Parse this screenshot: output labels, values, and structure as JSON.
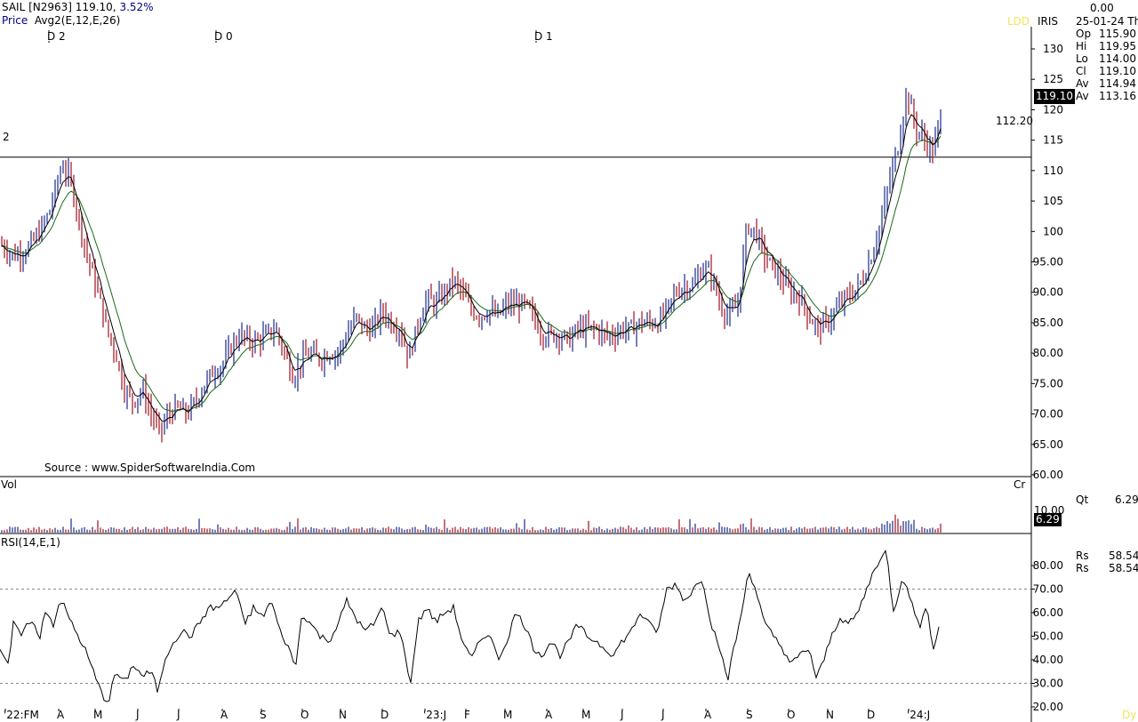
{
  "header": {
    "symbol": "SAIL [N2963]",
    "last": "119.10,",
    "change_pct": "3.52%",
    "indicator_label": "Price",
    "indicator_name": "Avg2(E,12,E,26)",
    "top_right_value": "0.00",
    "date": "25-01-24 Th",
    "ldd": "LDD",
    "iris": "IRIS"
  },
  "ohlc_panel": [
    {
      "key": "Op",
      "value": "115.90",
      "color": "#000080"
    },
    {
      "key": "Hi",
      "value": "119.95",
      "color": "#b00000"
    },
    {
      "key": "Lo",
      "value": "114.00",
      "color": "#f0c0c0"
    },
    {
      "key": "Cl",
      "value": "119.10",
      "color": "#a000a0"
    },
    {
      "key": "Av",
      "value": "114.94",
      "color": "#000000"
    },
    {
      "key": "Av",
      "value": "113.16",
      "color": "#008000"
    }
  ],
  "markers": [
    {
      "label": "D 2"
    },
    {
      "label": "D 0"
    },
    {
      "label": "D 1"
    }
  ],
  "left_marker": "2",
  "source": "Source : www.SpiderSoftwareIndia.Com",
  "price_axis": {
    "ticks": [
      "130",
      "125",
      "120",
      "115",
      "110",
      "105",
      "100",
      "95.00",
      "90.00",
      "85.00",
      "80.00",
      "75.00",
      "70.00",
      "65.00",
      "60.00"
    ],
    "current_price_tag": "119.10",
    "hline_label": "112.20",
    "hline_value": 112.2
  },
  "volume_panel": {
    "label": "Vol",
    "unit": "Cr",
    "tick": "10.00",
    "current_tag": "6.29",
    "qt_label": "Qt",
    "qt_value": "6.29"
  },
  "rsi_panel": {
    "label": "RSI(14,E,1)",
    "ticks": [
      "80.00",
      "70.00",
      "60.00",
      "50.00",
      "40.00",
      "30.00",
      "20.00"
    ],
    "rs": [
      {
        "key": "Rs",
        "value": "58.54"
      },
      {
        "key": "Rs",
        "value": "58.54"
      }
    ]
  },
  "x_axis_labels": [
    "'22:FM",
    "A",
    "M",
    "J",
    "J",
    "A",
    "S",
    "O",
    "N",
    "D",
    "'23:J",
    "F",
    "M",
    "A",
    "M",
    "J",
    "J",
    "A",
    "S",
    "O",
    "N",
    "D",
    "'24:J"
  ],
  "dy_label": "Dy",
  "colors": {
    "up": "#1a2a8a",
    "down": "#a01020",
    "ema_fast": "#000000",
    "ema_slow": "#1a6a1a",
    "grid": "#888888"
  },
  "chart_data": [
    {
      "type": "line",
      "title": "SAIL [N2963]",
      "series": [
        {
          "name": "Price",
          "values": [
            [
              0,
              98
            ],
            [
              15,
              96
            ],
            [
              30,
              97
            ],
            [
              45,
              100
            ],
            [
              55,
              103
            ],
            [
              70,
              111
            ],
            [
              80,
              108
            ],
            [
              90,
              101
            ],
            [
              100,
              95
            ],
            [
              110,
              90
            ],
            [
              120,
              84
            ],
            [
              130,
              80
            ],
            [
              140,
              74
            ],
            [
              150,
              72
            ],
            [
              160,
              74
            ],
            [
              170,
              70
            ],
            [
              180,
              67
            ],
            [
              190,
              70
            ],
            [
              200,
              71
            ],
            [
              210,
              70
            ],
            [
              220,
              72
            ],
            [
              230,
              75
            ],
            [
              240,
              77
            ],
            [
              250,
              78
            ],
            [
              260,
              81
            ],
            [
              270,
              83
            ],
            [
              280,
              82
            ],
            [
              290,
              82
            ],
            [
              300,
              83
            ],
            [
              310,
              84
            ],
            [
              320,
              80
            ],
            [
              330,
              76
            ],
            [
              340,
              79
            ],
            [
              350,
              80
            ],
            [
              360,
              79
            ],
            [
              370,
              80
            ],
            [
              380,
              80
            ],
            [
              390,
              83
            ],
            [
              400,
              86
            ],
            [
              410,
              84
            ],
            [
              420,
              84
            ],
            [
              430,
              87
            ],
            [
              440,
              85
            ],
            [
              450,
              84
            ],
            [
              460,
              79
            ],
            [
              470,
              85
            ],
            [
              480,
              89
            ],
            [
              490,
              88
            ],
            [
              500,
              90
            ],
            [
              510,
              92
            ],
            [
              520,
              90
            ],
            [
              530,
              87
            ],
            [
              540,
              86
            ],
            [
              550,
              87
            ],
            [
              560,
              86
            ],
            [
              570,
              88
            ],
            [
              580,
              88
            ],
            [
              590,
              88
            ],
            [
              600,
              86
            ],
            [
              610,
              83
            ],
            [
              620,
              83
            ],
            [
              630,
              83
            ],
            [
              640,
              82
            ],
            [
              650,
              84
            ],
            [
              660,
              84
            ],
            [
              670,
              84
            ],
            [
              680,
              83
            ],
            [
              690,
              83
            ],
            [
              700,
              84
            ],
            [
              710,
              84
            ],
            [
              720,
              85
            ],
            [
              730,
              85
            ],
            [
              740,
              85
            ],
            [
              750,
              87
            ],
            [
              760,
              90
            ],
            [
              770,
              91
            ],
            [
              780,
              91
            ],
            [
              790,
              94
            ],
            [
              800,
              93
            ],
            [
              810,
              88
            ],
            [
              820,
              86
            ],
            [
              830,
              88
            ],
            [
              840,
              101
            ],
            [
              850,
              100
            ],
            [
              860,
              96
            ],
            [
              870,
              94
            ],
            [
              880,
              92
            ],
            [
              890,
              90
            ],
            [
              900,
              89
            ],
            [
              910,
              86
            ],
            [
              920,
              84
            ],
            [
              930,
              85
            ],
            [
              940,
              87
            ],
            [
              950,
              89
            ],
            [
              960,
              90
            ],
            [
              970,
              92
            ],
            [
              980,
              96
            ],
            [
              990,
              101
            ],
            [
              1000,
              108
            ],
            [
              1010,
              114
            ],
            [
              1020,
              123
            ],
            [
              1030,
              117
            ],
            [
              1040,
              115
            ],
            [
              1050,
              113
            ],
            [
              1058,
              119.1
            ]
          ]
        }
      ],
      "ylim": [
        60,
        130
      ],
      "hline": 112.2
    },
    {
      "type": "bar",
      "title": "Vol",
      "values": [
        6.29
      ],
      "ylim": [
        0,
        12
      ]
    },
    {
      "type": "line",
      "title": "RSI(14,E,1)",
      "series": [
        {
          "name": "RSI",
          "values": [
            [
              0,
              45
            ],
            [
              10,
              38
            ],
            [
              15,
              55
            ],
            [
              25,
              50
            ],
            [
              35,
              58
            ],
            [
              45,
              48
            ],
            [
              50,
              62
            ],
            [
              60,
              55
            ],
            [
              68,
              66
            ],
            [
              75,
              60
            ],
            [
              85,
              52
            ],
            [
              95,
              45
            ],
            [
              105,
              35
            ],
            [
              115,
              25
            ],
            [
              122,
              22
            ],
            [
              130,
              35
            ],
            [
              140,
              30
            ],
            [
              150,
              38
            ],
            [
              160,
              33
            ],
            [
              170,
              35
            ],
            [
              178,
              26
            ],
            [
              185,
              40
            ],
            [
              195,
              48
            ],
            [
              205,
              52
            ],
            [
              215,
              50
            ],
            [
              225,
              56
            ],
            [
              235,
              62
            ],
            [
              245,
              62
            ],
            [
              255,
              65
            ],
            [
              265,
              70
            ],
            [
              275,
              55
            ],
            [
              285,
              62
            ],
            [
              295,
              58
            ],
            [
              305,
              65
            ],
            [
              315,
              52
            ],
            [
              325,
              45
            ],
            [
              332,
              36
            ],
            [
              340,
              60
            ],
            [
              350,
              55
            ],
            [
              360,
              50
            ],
            [
              370,
              48
            ],
            [
              380,
              55
            ],
            [
              390,
              65
            ],
            [
              400,
              58
            ],
            [
              410,
              52
            ],
            [
              420,
              55
            ],
            [
              430,
              62
            ],
            [
              440,
              50
            ],
            [
              450,
              52
            ],
            [
              462,
              30
            ],
            [
              470,
              56
            ],
            [
              480,
              62
            ],
            [
              490,
              56
            ],
            [
              500,
              60
            ],
            [
              510,
              62
            ],
            [
              520,
              48
            ],
            [
              530,
              40
            ],
            [
              540,
              48
            ],
            [
              550,
              52
            ],
            [
              560,
              40
            ],
            [
              570,
              48
            ],
            [
              580,
              60
            ],
            [
              590,
              55
            ],
            [
              600,
              45
            ],
            [
              610,
              42
            ],
            [
              620,
              48
            ],
            [
              630,
              42
            ],
            [
              640,
              48
            ],
            [
              650,
              55
            ],
            [
              660,
              50
            ],
            [
              670,
              48
            ],
            [
              680,
              45
            ],
            [
              690,
              42
            ],
            [
              700,
              48
            ],
            [
              710,
              52
            ],
            [
              720,
              60
            ],
            [
              730,
              55
            ],
            [
              740,
              52
            ],
            [
              750,
              70
            ],
            [
              760,
              72
            ],
            [
              770,
              65
            ],
            [
              780,
              70
            ],
            [
              790,
              75
            ],
            [
              800,
              55
            ],
            [
              810,
              45
            ],
            [
              818,
              30
            ],
            [
              825,
              45
            ],
            [
              832,
              55
            ],
            [
              842,
              78
            ],
            [
              850,
              70
            ],
            [
              860,
              55
            ],
            [
              870,
              50
            ],
            [
              880,
              45
            ],
            [
              890,
              38
            ],
            [
              900,
              42
            ],
            [
              910,
              45
            ],
            [
              918,
              32
            ],
            [
              925,
              38
            ],
            [
              935,
              50
            ],
            [
              945,
              58
            ],
            [
              955,
              55
            ],
            [
              965,
              60
            ],
            [
              975,
              70
            ],
            [
              985,
              80
            ],
            [
              997,
              86
            ],
            [
              1005,
              60
            ],
            [
              1015,
              75
            ],
            [
              1020,
              72
            ],
            [
              1028,
              60
            ],
            [
              1035,
              55
            ],
            [
              1042,
              62
            ],
            [
              1050,
              45
            ],
            [
              1058,
              58.5
            ]
          ]
        }
      ],
      "ylim": [
        20,
        85
      ]
    }
  ]
}
